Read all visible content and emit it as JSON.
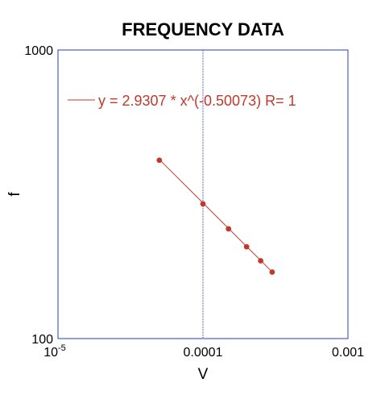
{
  "chart_data": {
    "type": "scatter",
    "title": "FREQUENCY DATA",
    "xlabel": "V",
    "ylabel": "f",
    "xscale": "log",
    "yscale": "log",
    "xlim": [
      1e-05,
      0.001
    ],
    "ylim": [
      100,
      1000
    ],
    "x_ticks": [
      {
        "value": 1e-05,
        "base": "10",
        "exponent": "-5"
      },
      {
        "value": 0.0001,
        "label": "0.0001"
      },
      {
        "value": 0.001,
        "label": "0.001"
      }
    ],
    "y_ticks": [
      {
        "value": 100,
        "label": "100"
      },
      {
        "value": 1000,
        "label": "1000"
      }
    ],
    "reference_line_x": 0.0001,
    "series": [
      {
        "x": [
          5e-05,
          0.0001,
          0.00015,
          0.0002,
          0.00025,
          0.0003
        ],
        "y": [
          415,
          293,
          240,
          208,
          186,
          170
        ],
        "color": "#c0392b"
      }
    ],
    "fit": {
      "label": "y = 2.9307 * x^(-0.50073)   R= 1",
      "coefficient": 2.9307,
      "exponent": -0.50073,
      "R": 1,
      "color": "#c0392b"
    },
    "legend_position": "top-left",
    "frame_color": "#1f3fbf",
    "grid": false
  }
}
